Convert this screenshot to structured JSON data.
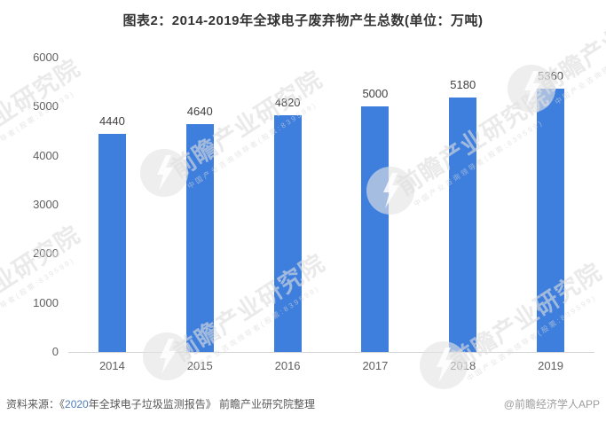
{
  "title": "图表2：2014-2019年全球电子废弃物产生总数(单位：万吨)",
  "chart_data": {
    "type": "bar",
    "title": "图表2：2014-2019年全球电子废弃物产生总数(单位：万吨)",
    "categories": [
      "2014",
      "2015",
      "2016",
      "2017",
      "2018",
      "2019"
    ],
    "values": [
      4440,
      4640,
      4820,
      5000,
      5180,
      5360
    ],
    "xlabel": "",
    "ylabel": "",
    "unit": "万吨",
    "ylim": [
      0,
      6000
    ],
    "yticks": [
      0,
      1000,
      2000,
      3000,
      4000,
      5000,
      6000
    ],
    "grid": false,
    "legend": null,
    "bar_color": "#3e7fde",
    "axis_line_color": "#d4d4d4"
  },
  "footer": {
    "source_prefix": "资料来源：《",
    "source_year": "2020",
    "source_suffix": "年全球电子垃圾监测报告》 前瞻产业研究院整理",
    "credit": "@前瞻经济学人APP"
  },
  "watermark": {
    "brand_text": "前瞻产业研究院",
    "sub_text": "中国产业咨询领导者(股票:839599)"
  }
}
